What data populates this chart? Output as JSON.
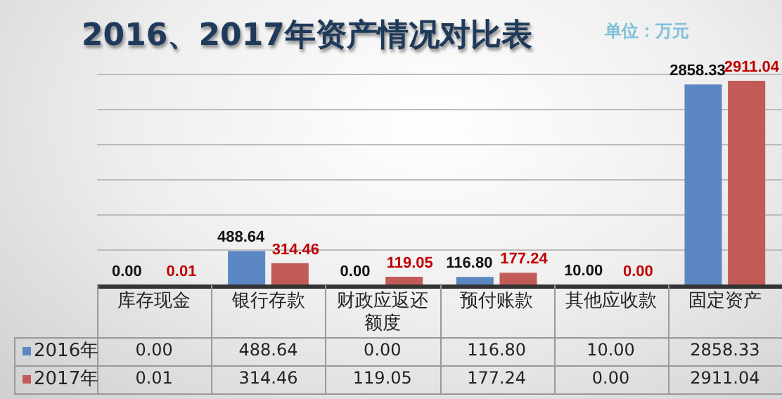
{
  "chart_data": {
    "type": "bar",
    "title": "2016、2017年资产情况对比表",
    "annotations": [
      "单位：万元"
    ],
    "categories": [
      "库存现金",
      "银行存款",
      "财政应返还额度",
      "预付账款",
      "其他应收款",
      "固定资产"
    ],
    "series": [
      {
        "name": "2016年",
        "color": "#5b87c2",
        "values": [
          0,
          488.64,
          0,
          116.8,
          10,
          2858.33
        ],
        "value_labels": [
          "0.00",
          "488.64",
          "0.00",
          "116.80",
          "10.00",
          "2858.33"
        ]
      },
      {
        "name": "2017年",
        "color": "#c25b58",
        "values": [
          0.01,
          314.46,
          119.05,
          177.24,
          0,
          2911.04
        ],
        "value_labels": [
          "0.01",
          "314.46",
          "119.05",
          "177.24",
          "0.00",
          "2911.04"
        ]
      }
    ],
    "ylim": [
      0,
      3000
    ],
    "yticks": [
      {
        "value": 0,
        "label": null
      },
      {
        "value": 500,
        "label": null
      },
      {
        "value": 1000,
        "label": null
      },
      {
        "value": 1500,
        "label": null
      },
      {
        "value": 2000,
        "label": null
      },
      {
        "value": 2500,
        "label": null
      },
      {
        "value": 3000,
        "label": null
      }
    ],
    "tick_labels": "x",
    "grid": "y",
    "legend": "bottom"
  }
}
